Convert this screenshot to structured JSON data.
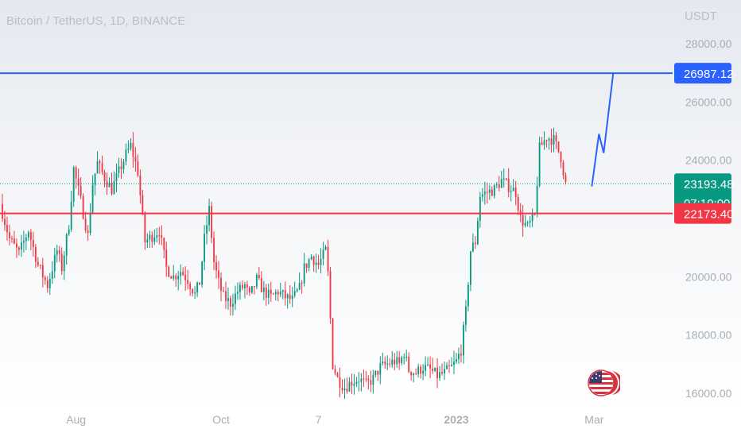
{
  "header": {
    "title": "Bitcoin / TetherUS, 1D, BINANCE",
    "currency": "USDT"
  },
  "chart_data": {
    "type": "candlestick",
    "ylim": [
      14500,
      29500
    ],
    "y_ticks": [
      16000,
      18000,
      20000,
      22000,
      24000,
      26000,
      28000
    ],
    "y_tick_labels": [
      "16000.00",
      "18000.00",
      "20000.00",
      "",
      "24000.00",
      "26000.00",
      "28000.00"
    ],
    "x_tick_labels": [
      "Aug",
      "Oct",
      "7",
      "2023",
      "Mar"
    ],
    "x_ticks_days": [
      28,
      89,
      130,
      188,
      246
    ],
    "xlim_days": [
      -4,
      279
    ],
    "grid": false,
    "levels": [
      {
        "name": "resistance",
        "value": 26987.12,
        "label": "26987.12",
        "color": "#2962ff"
      },
      {
        "name": "support",
        "value": 22173.4,
        "label": "22173.40",
        "color": "#f23645"
      }
    ],
    "last_price": {
      "value": 23193.48,
      "label": "23193.48",
      "countdown": "07:10:00",
      "color": "#089981"
    },
    "projection": [
      [
        245,
        23100
      ],
      [
        248,
        24900
      ],
      [
        250,
        24250
      ],
      [
        254,
        26987.12
      ]
    ],
    "close_path": [
      [
        -4,
        22500
      ],
      [
        0,
        21300
      ],
      [
        4,
        20800
      ],
      [
        8,
        21600
      ],
      [
        12,
        20400
      ],
      [
        16,
        19700
      ],
      [
        20,
        20900
      ],
      [
        22,
        20300
      ],
      [
        25,
        21800
      ],
      [
        27,
        23700
      ],
      [
        30,
        22600
      ],
      [
        33,
        21400
      ],
      [
        35,
        23200
      ],
      [
        37,
        23900
      ],
      [
        40,
        23400
      ],
      [
        43,
        23000
      ],
      [
        46,
        23600
      ],
      [
        49,
        24200
      ],
      [
        51,
        24500
      ],
      [
        54,
        23600
      ],
      [
        57,
        21200
      ],
      [
        60,
        21400
      ],
      [
        63,
        21600
      ],
      [
        66,
        20300
      ],
      [
        69,
        20000
      ],
      [
        72,
        20200
      ],
      [
        75,
        19900
      ],
      [
        78,
        19400
      ],
      [
        80,
        19800
      ],
      [
        82,
        21300
      ],
      [
        84,
        22300
      ],
      [
        86,
        20500
      ],
      [
        88,
        19800
      ],
      [
        90,
        19300
      ],
      [
        93,
        19100
      ],
      [
        96,
        19500
      ],
      [
        99,
        19700
      ],
      [
        101,
        19300
      ],
      [
        104,
        19900
      ],
      [
        107,
        19500
      ],
      [
        110,
        19300
      ],
      [
        113,
        19500
      ],
      [
        116,
        19300
      ],
      [
        119,
        19200
      ],
      [
        122,
        19600
      ],
      [
        124,
        20300
      ],
      [
        127,
        20700
      ],
      [
        130,
        20400
      ],
      [
        133,
        20900
      ],
      [
        134,
        20100
      ],
      [
        136,
        17000
      ],
      [
        138,
        16500
      ],
      [
        141,
        16200
      ],
      [
        144,
        16400
      ],
      [
        147,
        16500
      ],
      [
        150,
        16300
      ],
      [
        153,
        16500
      ],
      [
        156,
        16900
      ],
      [
        159,
        17000
      ],
      [
        162,
        17100
      ],
      [
        164,
        17000
      ],
      [
        166,
        17400
      ],
      [
        168,
        16800
      ],
      [
        171,
        16700
      ],
      [
        174,
        16900
      ],
      [
        177,
        16800
      ],
      [
        180,
        16600
      ],
      [
        183,
        16700
      ],
      [
        186,
        16900
      ],
      [
        188,
        17100
      ],
      [
        190,
        17500
      ],
      [
        192,
        18800
      ],
      [
        194,
        20900
      ],
      [
        196,
        21200
      ],
      [
        198,
        22800
      ],
      [
        201,
        22900
      ],
      [
        204,
        23000
      ],
      [
        207,
        23300
      ],
      [
        210,
        23100
      ],
      [
        213,
        22900
      ],
      [
        215,
        22000
      ],
      [
        218,
        21700
      ],
      [
        221,
        22100
      ],
      [
        223,
        24400
      ],
      [
        226,
        24800
      ],
      [
        229,
        24700
      ],
      [
        232,
        24100
      ],
      [
        234,
        23193.48
      ]
    ]
  }
}
